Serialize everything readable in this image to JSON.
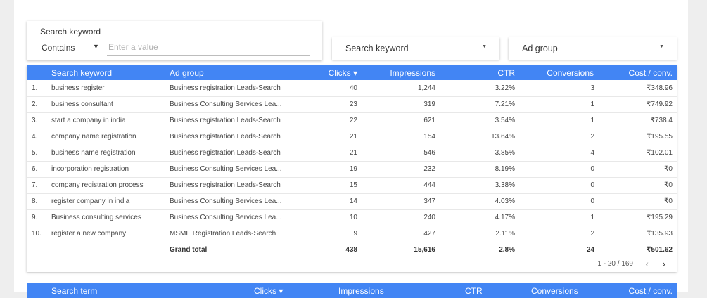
{
  "filter": {
    "title": "Search keyword",
    "operator": "Contains",
    "placeholder": "Enter a value"
  },
  "dropdowns": [
    {
      "label": "Search keyword"
    },
    {
      "label": "Ad group"
    }
  ],
  "table": {
    "headers": {
      "keyword": "Search keyword",
      "ad_group": "Ad group",
      "clicks": "Clicks ▾",
      "impressions": "Impressions",
      "ctr": "CTR",
      "conversions": "Conversions",
      "cost_conv": "Cost / conv."
    },
    "rows": [
      {
        "idx": "1.",
        "keyword": "business register",
        "ad_group": "Business registration Leads-Search",
        "clicks": "40",
        "impressions": "1,244",
        "ctr": "3.22%",
        "conversions": "3",
        "cost_conv": "₹348.96"
      },
      {
        "idx": "2.",
        "keyword": "business consultant",
        "ad_group": "Business Consulting Services Lea...",
        "clicks": "23",
        "impressions": "319",
        "ctr": "7.21%",
        "conversions": "1",
        "cost_conv": "₹749.92"
      },
      {
        "idx": "3.",
        "keyword": "start a company in india",
        "ad_group": "Business registration Leads-Search",
        "clicks": "22",
        "impressions": "621",
        "ctr": "3.54%",
        "conversions": "1",
        "cost_conv": "₹738.4"
      },
      {
        "idx": "4.",
        "keyword": "company name registration",
        "ad_group": "Business registration Leads-Search",
        "clicks": "21",
        "impressions": "154",
        "ctr": "13.64%",
        "conversions": "2",
        "cost_conv": "₹195.55"
      },
      {
        "idx": "5.",
        "keyword": "business name registration",
        "ad_group": "Business registration Leads-Search",
        "clicks": "21",
        "impressions": "546",
        "ctr": "3.85%",
        "conversions": "4",
        "cost_conv": "₹102.01"
      },
      {
        "idx": "6.",
        "keyword": "incorporation registration",
        "ad_group": "Business Consulting Services Lea...",
        "clicks": "19",
        "impressions": "232",
        "ctr": "8.19%",
        "conversions": "0",
        "cost_conv": "₹0"
      },
      {
        "idx": "7.",
        "keyword": "company registration process",
        "ad_group": "Business registration Leads-Search",
        "clicks": "15",
        "impressions": "444",
        "ctr": "3.38%",
        "conversions": "0",
        "cost_conv": "₹0"
      },
      {
        "idx": "8.",
        "keyword": "register company in india",
        "ad_group": "Business Consulting Services Lea...",
        "clicks": "14",
        "impressions": "347",
        "ctr": "4.03%",
        "conversions": "0",
        "cost_conv": "₹0"
      },
      {
        "idx": "9.",
        "keyword": "Business consulting services",
        "ad_group": "Business Consulting Services Lea...",
        "clicks": "10",
        "impressions": "240",
        "ctr": "4.17%",
        "conversions": "1",
        "cost_conv": "₹195.29"
      },
      {
        "idx": "10.",
        "keyword": "register a new company",
        "ad_group": "MSME Registration Leads-Search",
        "clicks": "9",
        "impressions": "427",
        "ctr": "2.11%",
        "conversions": "2",
        "cost_conv": "₹135.93"
      }
    ],
    "total": {
      "label": "Grand total",
      "clicks": "438",
      "impressions": "15,616",
      "ctr": "2.8%",
      "conversions": "24",
      "cost_conv": "₹501.62"
    },
    "pagination": {
      "text": "1 - 20 / 169",
      "prev": "‹",
      "next": "›"
    }
  },
  "table2": {
    "headers": {
      "term": "Search term",
      "clicks": "Clicks ▾",
      "impressions": "Impressions",
      "ctr": "CTR",
      "conversions": "Conversions",
      "cost_conv": "Cost / conv."
    }
  },
  "colors": {
    "header_bg": "#4285f4",
    "page_bg": "#eeeeee"
  }
}
